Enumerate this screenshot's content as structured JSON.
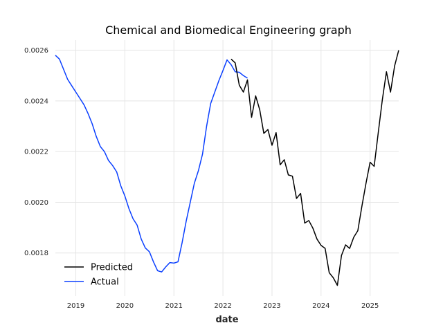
{
  "chart_data": {
    "type": "line",
    "title": "Chemical and Biomedical Engineering graph",
    "xlabel": "date",
    "ylabel": "",
    "x_ticks": [
      "2019",
      "2020",
      "2021",
      "2022",
      "2023",
      "2024",
      "2025"
    ],
    "y_ticks": [
      "0.0018",
      "0.0020",
      "0.0022",
      "0.0024",
      "0.0026"
    ],
    "xlim": [
      "2018-08",
      "2025-08"
    ],
    "ylim": [
      0.00163,
      0.00264
    ],
    "grid": true,
    "legend_position": "lower-left",
    "legend": [
      "Predicted",
      "Actual"
    ],
    "series": [
      {
        "name": "Actual",
        "color": "#0a3fff",
        "points": [
          [
            "2018-08",
            0.00258
          ],
          [
            "2018-09",
            0.002565
          ],
          [
            "2018-10",
            0.002525
          ],
          [
            "2018-11",
            0.002485
          ],
          [
            "2018-12",
            0.00246
          ],
          [
            "2019-01",
            0.002435
          ],
          [
            "2019-02",
            0.00241
          ],
          [
            "2019-03",
            0.002385
          ],
          [
            "2019-04",
            0.00235
          ],
          [
            "2019-05",
            0.00231
          ],
          [
            "2019-06",
            0.00226
          ],
          [
            "2019-07",
            0.00222
          ],
          [
            "2019-08",
            0.0022
          ],
          [
            "2019-09",
            0.002165
          ],
          [
            "2019-10",
            0.002145
          ],
          [
            "2019-11",
            0.00212
          ],
          [
            "2019-12",
            0.002065
          ],
          [
            "2020-01",
            0.002025
          ],
          [
            "2020-02",
            0.001975
          ],
          [
            "2020-03",
            0.001935
          ],
          [
            "2020-04",
            0.00191
          ],
          [
            "2020-05",
            0.001855
          ],
          [
            "2020-06",
            0.00182
          ],
          [
            "2020-07",
            0.001805
          ],
          [
            "2020-08",
            0.001765
          ],
          [
            "2020-09",
            0.00173
          ],
          [
            "2020-10",
            0.001725
          ],
          [
            "2020-11",
            0.001745
          ],
          [
            "2020-12",
            0.001762
          ],
          [
            "2021-01",
            0.00176
          ],
          [
            "2021-02",
            0.001765
          ],
          [
            "2021-03",
            0.00184
          ],
          [
            "2021-04",
            0.001925
          ],
          [
            "2021-05",
            0.002
          ],
          [
            "2021-06",
            0.002075
          ],
          [
            "2021-07",
            0.002125
          ],
          [
            "2021-08",
            0.00219
          ],
          [
            "2021-09",
            0.0023
          ],
          [
            "2021-10",
            0.00239
          ],
          [
            "2021-11",
            0.002435
          ],
          [
            "2021-12",
            0.00248
          ],
          [
            "2022-01",
            0.00252
          ],
          [
            "2022-02",
            0.002562
          ],
          [
            "2022-03",
            0.002543
          ],
          [
            "2022-04",
            0.002515
          ],
          [
            "2022-05",
            0.002513
          ],
          [
            "2022-06",
            0.0025
          ],
          [
            "2022-07",
            0.00249
          ]
        ]
      },
      {
        "name": "Predicted",
        "color": "#000000",
        "points": [
          [
            "2022-03",
            0.002565
          ],
          [
            "2022-04",
            0.00255
          ],
          [
            "2022-05",
            0.002462
          ],
          [
            "2022-06",
            0.002435
          ],
          [
            "2022-07",
            0.002483
          ],
          [
            "2022-08",
            0.002335
          ],
          [
            "2022-09",
            0.00242
          ],
          [
            "2022-10",
            0.002365
          ],
          [
            "2022-11",
            0.002272
          ],
          [
            "2022-12",
            0.002287
          ],
          [
            "2023-01",
            0.002225
          ],
          [
            "2023-02",
            0.002275
          ],
          [
            "2023-03",
            0.002148
          ],
          [
            "2023-04",
            0.002168
          ],
          [
            "2023-05",
            0.002108
          ],
          [
            "2023-06",
            0.002103
          ],
          [
            "2023-07",
            0.002015
          ],
          [
            "2023-08",
            0.002035
          ],
          [
            "2023-09",
            0.001918
          ],
          [
            "2023-10",
            0.001928
          ],
          [
            "2023-11",
            0.001898
          ],
          [
            "2023-12",
            0.001855
          ],
          [
            "2024-01",
            0.00183
          ],
          [
            "2024-02",
            0.001818
          ],
          [
            "2024-03",
            0.001722
          ],
          [
            "2024-04",
            0.001702
          ],
          [
            "2024-05",
            0.001672
          ],
          [
            "2024-06",
            0.00179
          ],
          [
            "2024-07",
            0.001832
          ],
          [
            "2024-08",
            0.001818
          ],
          [
            "2024-09",
            0.001862
          ],
          [
            "2024-10",
            0.001888
          ],
          [
            "2024-11",
            0.001985
          ],
          [
            "2024-12",
            0.002075
          ],
          [
            "2025-01",
            0.002158
          ],
          [
            "2025-02",
            0.002142
          ],
          [
            "2025-03",
            0.002275
          ],
          [
            "2025-04",
            0.002405
          ],
          [
            "2025-05",
            0.002515
          ],
          [
            "2025-06",
            0.002435
          ],
          [
            "2025-07",
            0.002538
          ],
          [
            "2025-08",
            0.0026
          ]
        ]
      }
    ]
  }
}
